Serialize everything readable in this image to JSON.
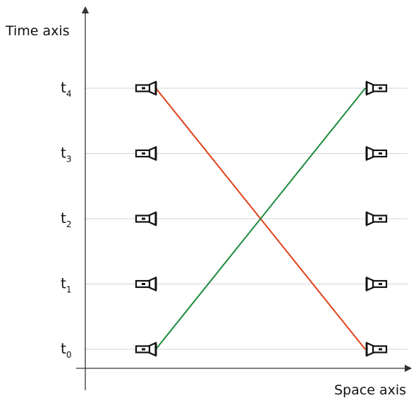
{
  "axes": {
    "time": "Time axis",
    "space": "Space axis"
  },
  "time_labels": [
    {
      "main": "t",
      "sub": "0"
    },
    {
      "main": "t",
      "sub": "1"
    },
    {
      "main": "t",
      "sub": "2"
    },
    {
      "main": "t",
      "sub": "3"
    },
    {
      "main": "t",
      "sub": "4"
    }
  ]
}
